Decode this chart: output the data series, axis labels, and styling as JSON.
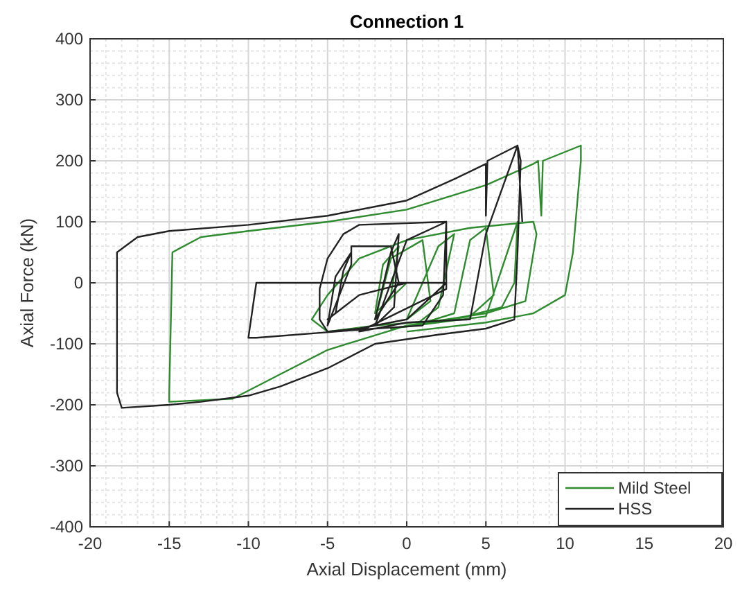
{
  "chart_data": {
    "type": "line",
    "title": "Connection 1",
    "xlabel": "Axial Displacement (mm)",
    "ylabel": "Axial Force (kN)",
    "xlim": [
      -20,
      20
    ],
    "ylim": [
      -400,
      400
    ],
    "xticks": [
      -20,
      -15,
      -10,
      -5,
      0,
      5,
      10,
      15,
      20
    ],
    "yticks": [
      -400,
      -300,
      -200,
      -100,
      0,
      100,
      200,
      300,
      400
    ],
    "grid": true,
    "legend": "bottom right",
    "line_style": "solid",
    "series": [
      {
        "name": "Mild Steel",
        "color": "#2e8b2e",
        "x": [
          0,
          -2,
          -1.5,
          -0.5,
          -1,
          -2,
          -1,
          1,
          1.5,
          0,
          2,
          3,
          2,
          0.5,
          3,
          4,
          5,
          5.5,
          4,
          -1,
          5,
          7,
          6.8,
          6,
          3,
          -2,
          -5,
          -6,
          -5,
          -3,
          0,
          4,
          8,
          8.2,
          7.5,
          5,
          0,
          -5,
          -8,
          -11,
          -15,
          -15,
          -14.8,
          -13,
          -10,
          -5,
          0,
          5,
          8,
          8.3,
          8.5,
          8.6,
          11,
          11,
          10.5,
          10,
          8,
          5,
          0
        ],
        "values": [
          0,
          -50,
          30,
          60,
          -20,
          -60,
          40,
          70,
          -30,
          -60,
          60,
          80,
          -40,
          -70,
          -50,
          70,
          90,
          -20,
          -55,
          -75,
          -55,
          100,
          0,
          -40,
          -60,
          -70,
          -80,
          -60,
          -20,
          40,
          70,
          90,
          100,
          80,
          -30,
          -50,
          -70,
          -110,
          -150,
          -190,
          -195,
          -180,
          50,
          75,
          85,
          100,
          120,
          160,
          195,
          200,
          110,
          200,
          225,
          200,
          50,
          -20,
          -50,
          -65,
          -80
        ]
      },
      {
        "name": "HSS",
        "color": "#222222",
        "x": [
          0,
          -3,
          -4,
          -5,
          -4.5,
          -4,
          -3.5,
          -4.5,
          -5,
          -3.5,
          -3.5,
          -1,
          -0.5,
          -2,
          -1,
          -0.5,
          -0.8,
          -2,
          0,
          2.5,
          2.5,
          0,
          -3,
          -5,
          -5.5,
          -5.5,
          -5,
          -4,
          -3,
          2.5,
          2.3,
          1,
          -2,
          -9.5,
          -10,
          -9.5,
          2.5,
          2.5,
          -3,
          0,
          4,
          5,
          7,
          7.2,
          7,
          6.8,
          5,
          2,
          -2,
          -5,
          -8,
          -10,
          -13,
          -15,
          -18,
          -18.3,
          -18.3,
          -17,
          -15,
          -10,
          -5,
          0,
          3,
          5,
          5,
          5.1,
          7,
          7.3
        ],
        "values": [
          0,
          -20,
          -40,
          -60,
          -50,
          20,
          50,
          10,
          -70,
          30,
          60,
          60,
          0,
          -60,
          50,
          80,
          -40,
          -70,
          70,
          100,
          0,
          -60,
          -75,
          -80,
          -60,
          -10,
          40,
          80,
          95,
          100,
          -20,
          -70,
          -75,
          -90,
          -90,
          0,
          0,
          -10,
          -80,
          -65,
          -60,
          80,
          225,
          200,
          50,
          -60,
          -75,
          -85,
          -100,
          -140,
          -170,
          -185,
          -195,
          -200,
          -205,
          -180,
          50,
          75,
          85,
          95,
          110,
          135,
          170,
          195,
          110,
          200,
          225,
          100
        ]
      }
    ]
  }
}
